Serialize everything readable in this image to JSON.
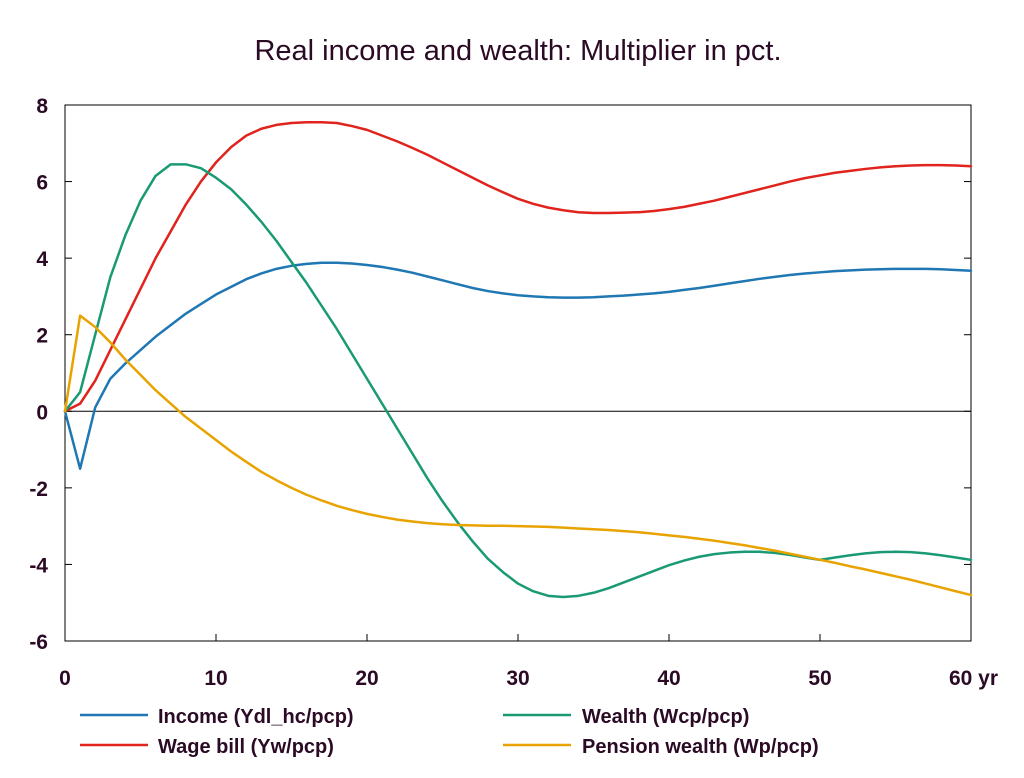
{
  "chart_data": {
    "type": "line",
    "title": "Real income and wealth: Multiplier in pct.",
    "x_unit": "yr",
    "xlim": [
      0,
      60
    ],
    "ylim": [
      -6,
      8
    ],
    "xticks": [
      0,
      10,
      20,
      30,
      40,
      50,
      60
    ],
    "xtick_labels": [
      "0",
      "10",
      "20",
      "30",
      "40",
      "50",
      "60 yr"
    ],
    "yticks": [
      -6,
      -4,
      -2,
      0,
      2,
      4,
      6,
      8
    ],
    "ytick_labels": [
      "-6",
      "-4",
      "-2",
      "0",
      "2",
      "4",
      "6",
      "8"
    ],
    "grid": false,
    "zero_line": true,
    "legend_position": "bottom",
    "x": [
      0,
      1,
      2,
      3,
      4,
      5,
      6,
      7,
      8,
      9,
      10,
      11,
      12,
      13,
      14,
      15,
      16,
      17,
      18,
      19,
      20,
      21,
      22,
      23,
      24,
      25,
      26,
      27,
      28,
      29,
      30,
      31,
      32,
      33,
      34,
      35,
      36,
      37,
      38,
      39,
      40,
      41,
      42,
      43,
      44,
      45,
      46,
      47,
      48,
      49,
      50,
      51,
      52,
      53,
      54,
      55,
      56,
      57,
      58,
      59,
      60
    ],
    "series": [
      {
        "name": "Income (Ydl_hc/pcp)",
        "color": "#1f77b4",
        "values": [
          0,
          -1.5,
          0.1,
          0.85,
          1.25,
          1.6,
          1.95,
          2.25,
          2.55,
          2.8,
          3.05,
          3.25,
          3.45,
          3.6,
          3.72,
          3.8,
          3.85,
          3.88,
          3.88,
          3.86,
          3.82,
          3.77,
          3.7,
          3.62,
          3.52,
          3.42,
          3.32,
          3.22,
          3.14,
          3.08,
          3.03,
          3.0,
          2.98,
          2.97,
          2.97,
          2.98,
          3.0,
          3.02,
          3.05,
          3.08,
          3.12,
          3.17,
          3.22,
          3.28,
          3.34,
          3.4,
          3.46,
          3.51,
          3.56,
          3.6,
          3.63,
          3.66,
          3.68,
          3.7,
          3.71,
          3.72,
          3.72,
          3.72,
          3.71,
          3.69,
          3.67
        ]
      },
      {
        "name": "Wage bill (Yw/pcp)",
        "color": "#e0231c",
        "values": [
          0,
          0.2,
          0.8,
          1.6,
          2.4,
          3.2,
          4.0,
          4.7,
          5.4,
          6.0,
          6.5,
          6.9,
          7.2,
          7.38,
          7.48,
          7.53,
          7.55,
          7.55,
          7.53,
          7.45,
          7.35,
          7.2,
          7.05,
          6.88,
          6.7,
          6.5,
          6.3,
          6.1,
          5.9,
          5.72,
          5.55,
          5.42,
          5.32,
          5.25,
          5.2,
          5.18,
          5.18,
          5.19,
          5.2,
          5.23,
          5.28,
          5.34,
          5.42,
          5.5,
          5.6,
          5.7,
          5.8,
          5.9,
          6.0,
          6.09,
          6.16,
          6.23,
          6.28,
          6.33,
          6.37,
          6.4,
          6.42,
          6.43,
          6.43,
          6.42,
          6.4
        ]
      },
      {
        "name": "Wealth (Wcp/pcp)",
        "color": "#1a9a74",
        "values": [
          0,
          0.5,
          2.0,
          3.5,
          4.6,
          5.5,
          6.15,
          6.45,
          6.45,
          6.35,
          6.1,
          5.8,
          5.4,
          4.95,
          4.45,
          3.9,
          3.35,
          2.75,
          2.15,
          1.5,
          0.85,
          0.2,
          -0.45,
          -1.1,
          -1.75,
          -2.35,
          -2.9,
          -3.4,
          -3.85,
          -4.2,
          -4.5,
          -4.7,
          -4.82,
          -4.85,
          -4.82,
          -4.74,
          -4.62,
          -4.47,
          -4.32,
          -4.17,
          -4.02,
          -3.9,
          -3.8,
          -3.73,
          -3.69,
          -3.67,
          -3.67,
          -3.7,
          -3.75,
          -3.82,
          -3.88,
          -3.82,
          -3.76,
          -3.71,
          -3.68,
          -3.67,
          -3.68,
          -3.71,
          -3.76,
          -3.82,
          -3.88
        ]
      },
      {
        "name": "Pension wealth (Wp/pcp)",
        "color": "#e8a300",
        "values": [
          0,
          2.5,
          2.2,
          1.8,
          1.35,
          0.95,
          0.55,
          0.2,
          -0.15,
          -0.45,
          -0.75,
          -1.05,
          -1.32,
          -1.58,
          -1.8,
          -2.0,
          -2.18,
          -2.33,
          -2.47,
          -2.58,
          -2.68,
          -2.76,
          -2.83,
          -2.88,
          -2.92,
          -2.95,
          -2.97,
          -2.98,
          -2.99,
          -2.99,
          -3.0,
          -3.01,
          -3.02,
          -3.04,
          -3.06,
          -3.08,
          -3.1,
          -3.13,
          -3.16,
          -3.2,
          -3.24,
          -3.28,
          -3.33,
          -3.38,
          -3.44,
          -3.5,
          -3.57,
          -3.64,
          -3.72,
          -3.8,
          -3.88,
          -3.96,
          -4.05,
          -4.13,
          -4.22,
          -4.31,
          -4.4,
          -4.5,
          -4.6,
          -4.7,
          -4.8
        ]
      }
    ]
  }
}
